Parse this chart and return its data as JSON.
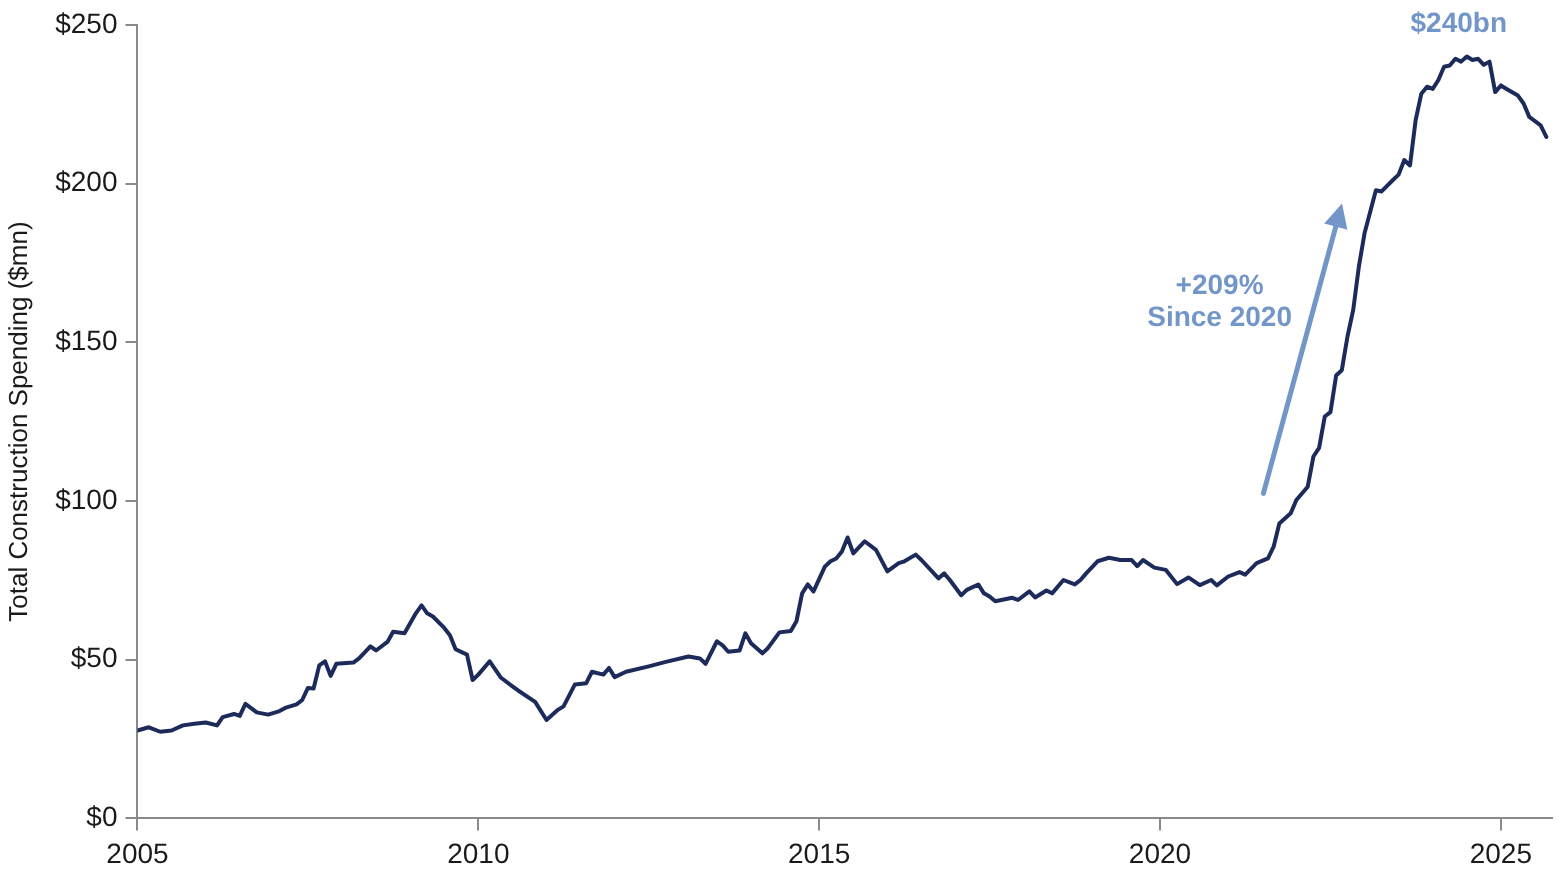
{
  "chart_data": {
    "type": "line",
    "ylabel": "Total Construction Spending ($mn)",
    "color": "#1d2b5b",
    "x": [
      "2005-01",
      "2005-03",
      "2005-05",
      "2005-07",
      "2005-09",
      "2005-11",
      "2006-01",
      "2006-03",
      "2006-04",
      "2006-06",
      "2006-07",
      "2006-08",
      "2006-10",
      "2006-12",
      "2007-02",
      "2007-03",
      "2007-05",
      "2007-06",
      "2007-07",
      "2007-08",
      "2007-09",
      "2007-10",
      "2007-11",
      "2007-12",
      "2008-03",
      "2008-04",
      "2008-06",
      "2008-07",
      "2008-09",
      "2008-10",
      "2008-12",
      "2009-02",
      "2009-03",
      "2009-04",
      "2009-05",
      "2009-07",
      "2009-08",
      "2009-09",
      "2009-11",
      "2009-12",
      "2010-01",
      "2010-03",
      "2010-05",
      "2010-07",
      "2010-08",
      "2010-11",
      "2011-01",
      "2011-03",
      "2011-04",
      "2011-06",
      "2011-08",
      "2011-09",
      "2011-11",
      "2011-12",
      "2012-01",
      "2012-03",
      "2012-07",
      "2012-10",
      "2013-02",
      "2013-04",
      "2013-05",
      "2013-07",
      "2013-08",
      "2013-09",
      "2013-11",
      "2013-12",
      "2014-01",
      "2014-03",
      "2014-04",
      "2014-06",
      "2014-08",
      "2014-09",
      "2014-10",
      "2014-11",
      "2014-12",
      "2015-02",
      "2015-03",
      "2015-04",
      "2015-05",
      "2015-06",
      "2015-07",
      "2015-09",
      "2015-11",
      "2016-01",
      "2016-03",
      "2016-04",
      "2016-06",
      "2016-07",
      "2016-10",
      "2016-11",
      "2016-12",
      "2017-02",
      "2017-03",
      "2017-05",
      "2017-06",
      "2017-07",
      "2017-08",
      "2017-11",
      "2017-12",
      "2018-02",
      "2018-03",
      "2018-05",
      "2018-06",
      "2018-08",
      "2018-10",
      "2018-11",
      "2018-12",
      "2019-02",
      "2019-04",
      "2019-06",
      "2019-08",
      "2019-09",
      "2019-10",
      "2019-12",
      "2020-02",
      "2020-04",
      "2020-06",
      "2020-08",
      "2020-10",
      "2020-11",
      "2021-01",
      "2021-03",
      "2021-04",
      "2021-06",
      "2021-08",
      "2021-09",
      "2021-10",
      "2021-12",
      "2022-01",
      "2022-03",
      "2022-04",
      "2022-05",
      "2022-06",
      "2022-07",
      "2022-08",
      "2022-09",
      "2022-10",
      "2022-11",
      "2022-12",
      "2023-01",
      "2023-03",
      "2023-04",
      "2023-06",
      "2023-07",
      "2023-08",
      "2023-09",
      "2023-10",
      "2023-11",
      "2023-12",
      "2024-01",
      "2024-02",
      "2024-03",
      "2024-04",
      "2024-05",
      "2024-06",
      "2024-07",
      "2024-08",
      "2024-09",
      "2024-10",
      "2024-11",
      "2024-12",
      "2025-01",
      "2025-02",
      "2025-04",
      "2025-05",
      "2025-06",
      "2025-08",
      "2025-09"
    ],
    "values": [
      27.7,
      28.7,
      27.3,
      27.7,
      29.3,
      29.8,
      30.2,
      29.3,
      31.9,
      32.9,
      32.3,
      36.1,
      33.4,
      32.7,
      33.8,
      34.8,
      35.9,
      37.3,
      41.1,
      40.9,
      48.2,
      49.5,
      44.9,
      48.7,
      49.1,
      50.4,
      54.2,
      52.9,
      55.6,
      58.8,
      58.3,
      64.6,
      67.1,
      64.6,
      63.6,
      60.0,
      57.7,
      53.3,
      51.6,
      43.6,
      45.3,
      49.5,
      44.3,
      41.6,
      40.3,
      36.7,
      31.0,
      34.2,
      35.3,
      42.2,
      42.6,
      46.2,
      45.3,
      47.4,
      44.5,
      46.2,
      47.9,
      49.3,
      51.0,
      50.4,
      48.7,
      55.8,
      54.5,
      52.5,
      52.9,
      58.3,
      55.2,
      52.0,
      53.7,
      58.6,
      59.0,
      62.1,
      70.9,
      73.7,
      71.5,
      79.3,
      81.0,
      81.9,
      84.1,
      88.5,
      83.5,
      87.3,
      84.6,
      77.8,
      80.4,
      81.0,
      83.1,
      81.4,
      75.6,
      77.2,
      75.1,
      70.3,
      72.0,
      73.7,
      70.9,
      69.9,
      68.4,
      69.5,
      68.8,
      71.5,
      69.6,
      71.8,
      70.9,
      75.1,
      73.7,
      75.1,
      77.2,
      81.0,
      82.1,
      81.4,
      81.4,
      79.5,
      81.4,
      79.0,
      78.3,
      73.8,
      75.9,
      73.5,
      75.1,
      73.4,
      76.2,
      77.6,
      76.8,
      80.4,
      81.9,
      85.6,
      92.9,
      96.1,
      100.3,
      104.5,
      114.0,
      116.7,
      126.6,
      128.0,
      139.5,
      141.2,
      151.8,
      160.1,
      173.8,
      184.3,
      197.9,
      197.5,
      201.1,
      202.8,
      207.4,
      205.7,
      220.0,
      228.3,
      230.5,
      229.8,
      232.6,
      236.8,
      237.2,
      239.3,
      238.4,
      240,
      238.9,
      239.3,
      237.4,
      238.4,
      228.8,
      230.9,
      229.8,
      227.7,
      225.2,
      221.0,
      218.3,
      214.7
    ],
    "xlim": [
      "2005-01",
      "2025-10"
    ],
    "xticks": [
      "2005",
      "2010",
      "2015",
      "2020",
      "2025"
    ],
    "ylim": [
      0,
      250
    ],
    "yticks": [
      {
        "value": 0,
        "label": "$0"
      },
      {
        "value": 50,
        "label": "$50"
      },
      {
        "value": 100,
        "label": "$100"
      },
      {
        "value": 150,
        "label": "$150"
      },
      {
        "value": 200,
        "label": "$200"
      },
      {
        "value": 250,
        "label": "$250"
      }
    ],
    "annotations": [
      {
        "text": "$240bn",
        "x": "2024-07",
        "y": 240
      },
      "+209%\nSince 2020"
    ]
  }
}
